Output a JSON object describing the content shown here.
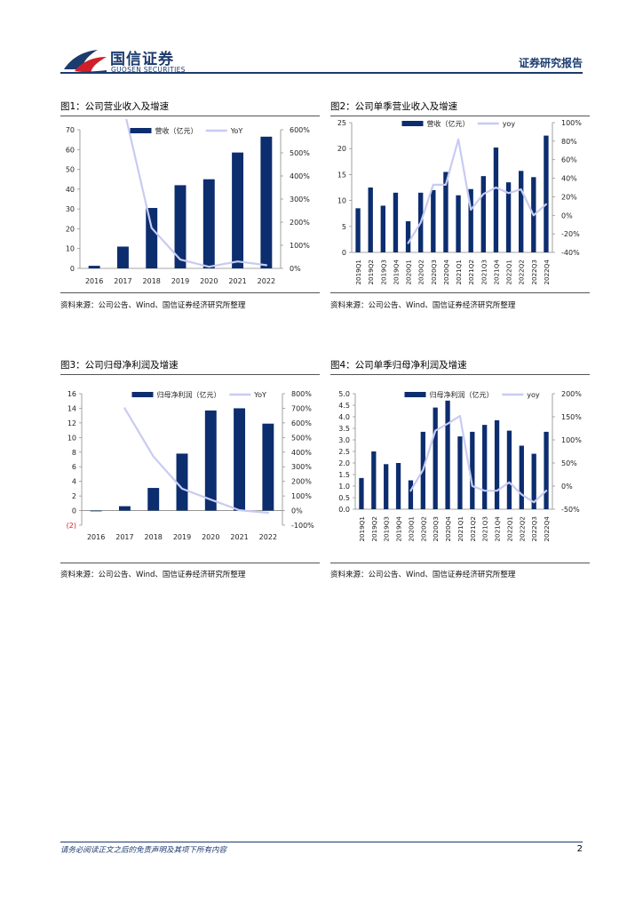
{
  "header": {
    "logo_cn": "国信证券",
    "logo_en": "GUOSEN SECURITIES",
    "report_label": "证券研究报告",
    "colors": {
      "navy": "#1c3b6e",
      "red": "#d11f2a",
      "bar": "#0c2d6e",
      "line": "#c8cbf2"
    }
  },
  "footer": {
    "disclaimer": "请务必阅读正文之后的免责声明及其项下所有内容",
    "page": "2"
  },
  "chart_data": [
    {
      "id": "fig1",
      "type": "bar",
      "title": "图1：公司营业收入及增速",
      "source": "资料来源：公司公告、Wind、国信证券经济研究所整理",
      "categories": [
        "2016",
        "2017",
        "2018",
        "2019",
        "2020",
        "2021",
        "2022"
      ],
      "series": [
        {
          "name": "营收（亿元）",
          "kind": "bar",
          "axis": "left",
          "values": [
            1.3,
            11,
            30.5,
            42,
            45,
            58.5,
            66.5
          ]
        },
        {
          "name": "YoY",
          "kind": "line",
          "axis": "right",
          "values": [
            null,
            7.1,
            1.75,
            0.38,
            0.07,
            0.3,
            0.14
          ]
        }
      ],
      "left_axis": {
        "min": 0,
        "max": 70,
        "ticks": [
          0,
          10,
          20,
          30,
          40,
          50,
          60,
          70
        ],
        "labels": [
          "0",
          "10",
          "20",
          "30",
          "40",
          "50",
          "60",
          "70"
        ]
      },
      "right_axis": {
        "min": 0,
        "max": 6,
        "ticks": [
          0,
          1,
          2,
          3,
          4,
          5,
          6
        ],
        "labels": [
          "0%",
          "100%",
          "200%",
          "300%",
          "400%",
          "500%",
          "600%"
        ]
      },
      "x_label_style": "horizontal"
    },
    {
      "id": "fig2",
      "type": "bar",
      "title": "图2：公司单季营业收入及增速",
      "source": "资料来源：公司公告、Wind、国信证券经济研究所整理",
      "categories": [
        "2019Q1",
        "2019Q2",
        "2019Q3",
        "2019Q4",
        "2020Q1",
        "2020Q2",
        "2020Q3",
        "2020Q4",
        "2021Q1",
        "2021Q2",
        "2021Q3",
        "2021Q4",
        "2022Q1",
        "2022Q2",
        "2022Q3",
        "2022Q4"
      ],
      "series": [
        {
          "name": "营收（亿元）",
          "kind": "bar",
          "axis": "left",
          "values": [
            8.5,
            12.5,
            9,
            11.5,
            6,
            11.5,
            12,
            15.5,
            11,
            12.2,
            14.7,
            20.2,
            13.5,
            15.7,
            14.5,
            22.5
          ]
        },
        {
          "name": "yoy",
          "kind": "line",
          "axis": "right",
          "values": [
            null,
            null,
            null,
            null,
            -0.3,
            -0.08,
            0.33,
            0.33,
            0.82,
            0.06,
            0.23,
            0.3,
            0.24,
            0.28,
            0.0,
            0.12
          ]
        }
      ],
      "left_axis": {
        "min": 0,
        "max": 25,
        "ticks": [
          0,
          5,
          10,
          15,
          20,
          25
        ],
        "labels": [
          "0",
          "5",
          "10",
          "15",
          "20",
          "25"
        ]
      },
      "right_axis": {
        "min": -0.4,
        "max": 1.0,
        "ticks": [
          -0.4,
          -0.2,
          0,
          0.2,
          0.4,
          0.6,
          0.8,
          1.0
        ],
        "labels": [
          "-40%",
          "-20%",
          "0%",
          "20%",
          "40%",
          "60%",
          "80%",
          "100%"
        ]
      },
      "x_label_style": "vertical"
    },
    {
      "id": "fig3",
      "type": "bar",
      "title": "图3：公司归母净利润及增速",
      "source": "资料来源：公司公告、Wind、国信证券经济研究所整理",
      "categories": [
        "2016",
        "2017",
        "2018",
        "2019",
        "2020",
        "2021",
        "2022"
      ],
      "series": [
        {
          "name": "归母净利润（亿元）",
          "kind": "bar",
          "axis": "left",
          "values": [
            -0.1,
            0.6,
            3.1,
            7.8,
            13.7,
            14,
            11.9
          ]
        },
        {
          "name": "YoY",
          "kind": "line",
          "axis": "right",
          "values": [
            null,
            7.0,
            3.7,
            1.5,
            0.75,
            0.03,
            -0.15
          ]
        }
      ],
      "left_axis": {
        "min": -2,
        "max": 16,
        "ticks": [
          -2,
          0,
          2,
          4,
          6,
          8,
          10,
          12,
          14,
          16
        ],
        "labels": [
          "(2)",
          "0",
          "2",
          "4",
          "6",
          "8",
          "10",
          "12",
          "14",
          "16"
        ]
      },
      "right_axis": {
        "min": -1,
        "max": 8,
        "ticks": [
          -1,
          0,
          1,
          2,
          3,
          4,
          5,
          6,
          7,
          8
        ],
        "labels": [
          "-100%",
          "0%",
          "100%",
          "200%",
          "300%",
          "400%",
          "500%",
          "600%",
          "700%",
          "800%"
        ]
      },
      "x_label_style": "horizontal"
    },
    {
      "id": "fig4",
      "type": "bar",
      "title": "图4：公司单季归母净利润及增速",
      "source": "资料来源：公司公告、Wind、国信证券经济研究所整理",
      "categories": [
        "2019Q1",
        "2019Q2",
        "2019Q3",
        "2019Q4",
        "2020Q1",
        "2020Q2",
        "2020Q3",
        "2020Q4",
        "2021Q1",
        "2021Q2",
        "2021Q3",
        "2021Q4",
        "2022Q1",
        "2022Q2",
        "2022Q3",
        "2022Q4"
      ],
      "series": [
        {
          "name": "归母净利润（亿元）",
          "kind": "bar",
          "axis": "left",
          "values": [
            1.35,
            2.5,
            1.95,
            2.0,
            1.25,
            3.35,
            4.4,
            4.7,
            3.15,
            3.35,
            3.65,
            3.85,
            3.4,
            2.75,
            2.4,
            3.35
          ]
        },
        {
          "name": "yoy",
          "kind": "line",
          "axis": "right",
          "values": [
            null,
            null,
            null,
            null,
            -0.1,
            0.35,
            1.2,
            1.35,
            1.52,
            0.0,
            -0.1,
            -0.1,
            0.08,
            -0.18,
            -0.35,
            -0.1
          ]
        }
      ],
      "left_axis": {
        "min": 0,
        "max": 5,
        "ticks": [
          0,
          0.5,
          1,
          1.5,
          2,
          2.5,
          3,
          3.5,
          4,
          4.5,
          5
        ],
        "labels": [
          "0.0",
          "0.5",
          "1.0",
          "1.5",
          "2.0",
          "2.5",
          "3.0",
          "3.5",
          "4.0",
          "4.5",
          "5.0"
        ]
      },
      "right_axis": {
        "min": -0.5,
        "max": 2.0,
        "ticks": [
          -0.5,
          0,
          0.5,
          1.0,
          1.5,
          2.0
        ],
        "labels": [
          "-50%",
          "0%",
          "50%",
          "100%",
          "150%",
          "200%"
        ]
      },
      "x_label_style": "vertical"
    }
  ]
}
